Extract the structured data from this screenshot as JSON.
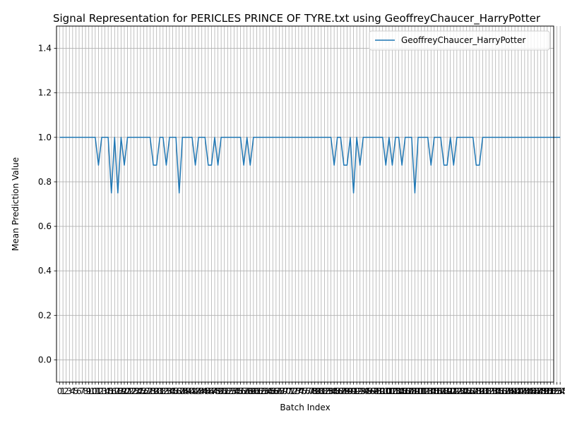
{
  "chart_data": {
    "type": "line",
    "title": "Signal Representation for PERICLES PRINCE OF TYRE.txt using GeoffreyChaucer_HarryPotter",
    "xlabel": "Batch Index",
    "ylabel": "Mean Prediction Value",
    "xlim": [
      -1,
      153
    ],
    "ylim": [
      -0.1,
      1.5
    ],
    "yticks": [
      0.0,
      0.2,
      0.4,
      0.6,
      0.8,
      1.0,
      1.2,
      1.4
    ],
    "x_tick_step": 1,
    "grid": true,
    "legend_position": "top-right",
    "series": [
      {
        "name": "GeoffreyChaucer_HarryPotter",
        "color": "#1f77b4",
        "x_start": 0,
        "values": [
          1,
          1,
          1,
          1,
          1,
          1,
          1,
          1,
          1,
          1,
          1,
          1,
          0.875,
          1,
          1,
          1,
          0.75,
          1,
          0.75,
          1,
          0.875,
          1,
          1,
          1,
          1,
          1,
          1,
          1,
          1,
          0.875,
          0.875,
          1,
          1,
          0.875,
          1,
          1,
          1,
          0.75,
          1,
          1,
          1,
          1,
          0.875,
          1,
          1,
          1,
          0.875,
          0.875,
          1,
          0.875,
          1,
          1,
          1,
          1,
          1,
          1,
          1,
          0.875,
          1,
          0.875,
          1,
          1,
          1,
          1,
          1,
          1,
          1,
          1,
          1,
          1,
          1,
          1,
          1,
          1,
          1,
          1,
          1,
          1,
          1,
          1,
          1,
          1,
          1,
          1,
          1,
          0.875,
          1,
          1,
          0.875,
          0.875,
          1,
          0.75,
          1,
          0.875,
          1,
          1,
          1,
          1,
          1,
          1,
          1,
          0.875,
          1,
          0.875,
          1,
          1,
          0.875,
          1,
          1,
          1,
          0.75,
          1,
          1,
          1,
          1,
          0.875,
          1,
          1,
          1,
          0.875,
          0.875,
          1,
          0.875,
          1,
          1,
          1,
          1,
          1,
          1,
          0.875,
          0.875,
          1,
          1,
          1,
          1,
          1,
          1,
          1,
          1,
          1,
          1,
          1,
          1,
          1,
          1,
          1,
          1,
          1,
          1,
          1,
          1,
          1,
          1,
          1,
          1,
          1
        ]
      }
    ]
  }
}
